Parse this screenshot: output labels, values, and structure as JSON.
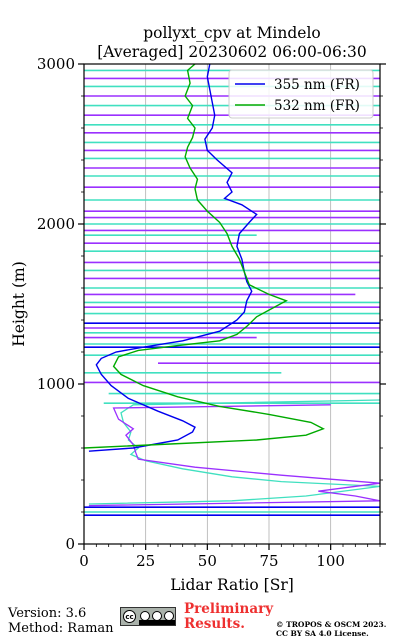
{
  "chart_data": {
    "type": "line",
    "title": "pollyxt_cpv at Mindelo",
    "subtitle": "[Averaged] 20230602 06:00-06:30",
    "xlabel": "Lidar Ratio [Sr]",
    "ylabel": "Height (m)",
    "xlim": [
      0,
      120
    ],
    "ylim": [
      0,
      3000
    ],
    "xticks": [
      "0",
      "25",
      "50",
      "75",
      "100"
    ],
    "xtick_values": [
      0,
      25,
      50,
      75,
      100
    ],
    "yticks": [
      "0",
      "1000",
      "2000",
      "3000"
    ],
    "ytick_values": [
      0,
      1000,
      2000,
      3000
    ],
    "grid": "vertical",
    "legend": "top-right",
    "series": [
      {
        "name": "355 nm (FR)",
        "color": "#0000ee",
        "points": [
          [
            2,
            580
          ],
          [
            20,
            600
          ],
          [
            38,
            650
          ],
          [
            44,
            700
          ],
          [
            45,
            730
          ],
          [
            40,
            770
          ],
          [
            30,
            830
          ],
          [
            18,
            910
          ],
          [
            11,
            990
          ],
          [
            7,
            1060
          ],
          [
            5,
            1120
          ],
          [
            7,
            1160
          ],
          [
            13,
            1200
          ],
          [
            24,
            1230
          ],
          [
            40,
            1270
          ],
          [
            55,
            1330
          ],
          [
            62,
            1400
          ],
          [
            65,
            1450
          ],
          [
            66,
            1520
          ],
          [
            68,
            1580
          ],
          [
            66,
            1640
          ],
          [
            65,
            1700
          ],
          [
            64,
            1780
          ],
          [
            62,
            1860
          ],
          [
            63,
            1940
          ],
          [
            67,
            2010
          ],
          [
            70,
            2060
          ],
          [
            64,
            2120
          ],
          [
            57,
            2160
          ],
          [
            60,
            2200
          ],
          [
            58,
            2260
          ],
          [
            60,
            2320
          ],
          [
            54,
            2400
          ],
          [
            50,
            2460
          ],
          [
            49,
            2530
          ],
          [
            52,
            2600
          ],
          [
            53,
            2680
          ],
          [
            52,
            2760
          ],
          [
            51,
            2840
          ],
          [
            50,
            2920
          ],
          [
            51,
            3000
          ]
        ]
      },
      {
        "name": "532 nm (FR)",
        "color": "#00aa00",
        "points": [
          [
            0,
            600
          ],
          [
            35,
            625
          ],
          [
            70,
            650
          ],
          [
            90,
            680
          ],
          [
            97,
            720
          ],
          [
            92,
            760
          ],
          [
            75,
            810
          ],
          [
            55,
            860
          ],
          [
            38,
            920
          ],
          [
            24,
            990
          ],
          [
            15,
            1060
          ],
          [
            12,
            1110
          ],
          [
            14,
            1170
          ],
          [
            22,
            1210
          ],
          [
            38,
            1240
          ],
          [
            55,
            1270
          ],
          [
            62,
            1310
          ],
          [
            66,
            1360
          ],
          [
            70,
            1420
          ],
          [
            76,
            1470
          ],
          [
            82,
            1520
          ],
          [
            75,
            1560
          ],
          [
            67,
            1620
          ],
          [
            65,
            1700
          ],
          [
            63,
            1780
          ],
          [
            60,
            1860
          ],
          [
            58,
            1940
          ],
          [
            55,
            2010
          ],
          [
            50,
            2080
          ],
          [
            46,
            2150
          ],
          [
            45,
            2220
          ],
          [
            46,
            2280
          ],
          [
            43,
            2350
          ],
          [
            41,
            2420
          ],
          [
            42,
            2480
          ],
          [
            44,
            2540
          ],
          [
            45,
            2600
          ],
          [
            42,
            2660
          ],
          [
            44,
            2740
          ],
          [
            41,
            2800
          ],
          [
            43,
            2880
          ],
          [
            42,
            2960
          ],
          [
            45,
            3000
          ]
        ]
      }
    ],
    "noise_traces": [
      {
        "color": "#40e0c0",
        "points": [
          [
            2,
            250
          ],
          [
            60,
            270
          ],
          [
            90,
            300
          ],
          [
            110,
            340
          ],
          [
            120,
            360
          ],
          [
            80,
            390
          ],
          [
            60,
            420
          ],
          [
            40,
            470
          ],
          [
            25,
            520
          ],
          [
            19,
            560
          ],
          [
            22,
            600
          ],
          [
            18,
            650
          ],
          [
            19,
            700
          ],
          [
            16,
            760
          ],
          [
            15,
            820
          ],
          [
            20,
            870
          ],
          [
            120,
            900
          ]
        ]
      },
      {
        "color": "#9b30ff",
        "points": [
          [
            2,
            240
          ],
          [
            120,
            270
          ],
          [
            110,
            300
          ],
          [
            95,
            330
          ],
          [
            120,
            380
          ],
          [
            80,
            430
          ],
          [
            45,
            480
          ],
          [
            22,
            530
          ],
          [
            21,
            570
          ],
          [
            20,
            620
          ],
          [
            17,
            680
          ],
          [
            20,
            720
          ],
          [
            14,
            780
          ],
          [
            12,
            850
          ],
          [
            100,
            870
          ]
        ]
      }
    ],
    "noise_lines": [
      {
        "y": 180,
        "x1": 0,
        "x2": 120,
        "color": "#0000ee"
      },
      {
        "y": 200,
        "x1": 0,
        "x2": 120,
        "color": "#40e0c0"
      },
      {
        "y": 230,
        "x1": 0,
        "x2": 120,
        "color": "#0000ee"
      },
      {
        "y": 880,
        "x1": 8,
        "x2": 120,
        "color": "#40e0c0"
      },
      {
        "y": 940,
        "x1": 10,
        "x2": 120,
        "color": "#40e0c0"
      },
      {
        "y": 1010,
        "x1": 0,
        "x2": 120,
        "color": "#9b30ff"
      },
      {
        "y": 1070,
        "x1": 0,
        "x2": 80,
        "color": "#40e0c0"
      },
      {
        "y": 1130,
        "x1": 30,
        "x2": 120,
        "color": "#9b30ff"
      },
      {
        "y": 1180,
        "x1": 0,
        "x2": 120,
        "color": "#40e0c0"
      },
      {
        "y": 1230,
        "x1": 0,
        "x2": 120,
        "color": "#0000ee"
      },
      {
        "y": 1250,
        "x1": 0,
        "x2": 120,
        "color": "#40e0c0"
      },
      {
        "y": 1290,
        "x1": 0,
        "x2": 70,
        "color": "#9b30ff"
      },
      {
        "y": 1320,
        "x1": 0,
        "x2": 120,
        "color": "#40e0c0"
      },
      {
        "y": 1350,
        "x1": 0,
        "x2": 120,
        "color": "#9b30ff"
      },
      {
        "y": 1380,
        "x1": 0,
        "x2": 120,
        "color": "#0000ee"
      },
      {
        "y": 1440,
        "x1": 0,
        "x2": 120,
        "color": "#40e0c0"
      },
      {
        "y": 1480,
        "x1": 0,
        "x2": 120,
        "color": "#9b30ff"
      },
      {
        "y": 1510,
        "x1": 0,
        "x2": 120,
        "color": "#40e0c0"
      },
      {
        "y": 1560,
        "x1": 0,
        "x2": 110,
        "color": "#9b30ff"
      },
      {
        "y": 1600,
        "x1": 0,
        "x2": 120,
        "color": "#40e0c0"
      },
      {
        "y": 1660,
        "x1": 0,
        "x2": 120,
        "color": "#9b30ff"
      },
      {
        "y": 1710,
        "x1": 0,
        "x2": 120,
        "color": "#40e0c0"
      },
      {
        "y": 1760,
        "x1": 0,
        "x2": 120,
        "color": "#9b30ff"
      },
      {
        "y": 1830,
        "x1": 0,
        "x2": 120,
        "color": "#40e0c0"
      },
      {
        "y": 1880,
        "x1": 0,
        "x2": 120,
        "color": "#9b30ff"
      },
      {
        "y": 1930,
        "x1": 0,
        "x2": 70,
        "color": "#40e0c0"
      },
      {
        "y": 1960,
        "x1": 0,
        "x2": 120,
        "color": "#9b30ff"
      },
      {
        "y": 2000,
        "x1": 0,
        "x2": 120,
        "color": "#40e0c0"
      },
      {
        "y": 2040,
        "x1": 0,
        "x2": 120,
        "color": "#9b30ff"
      },
      {
        "y": 2080,
        "x1": 0,
        "x2": 120,
        "color": "#9b30ff"
      },
      {
        "y": 2150,
        "x1": 0,
        "x2": 120,
        "color": "#40e0c0"
      },
      {
        "y": 2230,
        "x1": 0,
        "x2": 120,
        "color": "#9b30ff"
      },
      {
        "y": 2300,
        "x1": 0,
        "x2": 120,
        "color": "#40e0c0"
      },
      {
        "y": 2350,
        "x1": 0,
        "x2": 120,
        "color": "#9b30ff"
      },
      {
        "y": 2410,
        "x1": 0,
        "x2": 120,
        "color": "#40e0c0"
      },
      {
        "y": 2460,
        "x1": 0,
        "x2": 120,
        "color": "#9b30ff"
      },
      {
        "y": 2510,
        "x1": 0,
        "x2": 120,
        "color": "#40e0c0"
      },
      {
        "y": 2570,
        "x1": 0,
        "x2": 120,
        "color": "#9b30ff"
      },
      {
        "y": 2620,
        "x1": 0,
        "x2": 120,
        "color": "#40e0c0"
      },
      {
        "y": 2680,
        "x1": 0,
        "x2": 120,
        "color": "#9b30ff"
      },
      {
        "y": 2740,
        "x1": 0,
        "x2": 120,
        "color": "#40e0c0"
      },
      {
        "y": 2800,
        "x1": 0,
        "x2": 120,
        "color": "#9b30ff"
      },
      {
        "y": 2860,
        "x1": 0,
        "x2": 120,
        "color": "#40e0c0"
      },
      {
        "y": 2910,
        "x1": 0,
        "x2": 120,
        "color": "#9b30ff"
      },
      {
        "y": 2960,
        "x1": 0,
        "x2": 120,
        "color": "#40e0c0"
      }
    ]
  },
  "footer": {
    "version": "Version: 3.6",
    "method": "Method: Raman",
    "license_icon": "cc-by-sa-badge",
    "preliminary_line1": "Preliminary",
    "preliminary_line2": "Results.",
    "copyright_line1": "© TROPOS & OSCM 2023.",
    "copyright_line2": "CC BY SA 4.0 License.",
    "preliminary_color": "#ee3030"
  }
}
